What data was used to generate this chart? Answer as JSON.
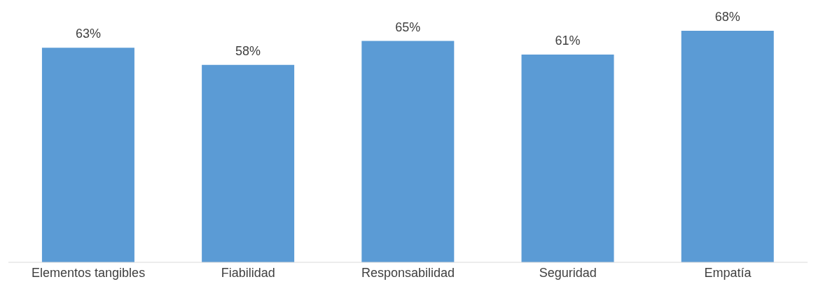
{
  "chart_data": {
    "type": "bar",
    "categories": [
      "Elementos tangibles",
      "Fiabilidad",
      "Responsabilidad",
      "Seguridad",
      "Empatía"
    ],
    "values": [
      63,
      58,
      65,
      61,
      68
    ],
    "value_labels": [
      "63%",
      "58%",
      "65%",
      "61%",
      "68%"
    ],
    "color": "#5b9bd5",
    "grid": false
  }
}
